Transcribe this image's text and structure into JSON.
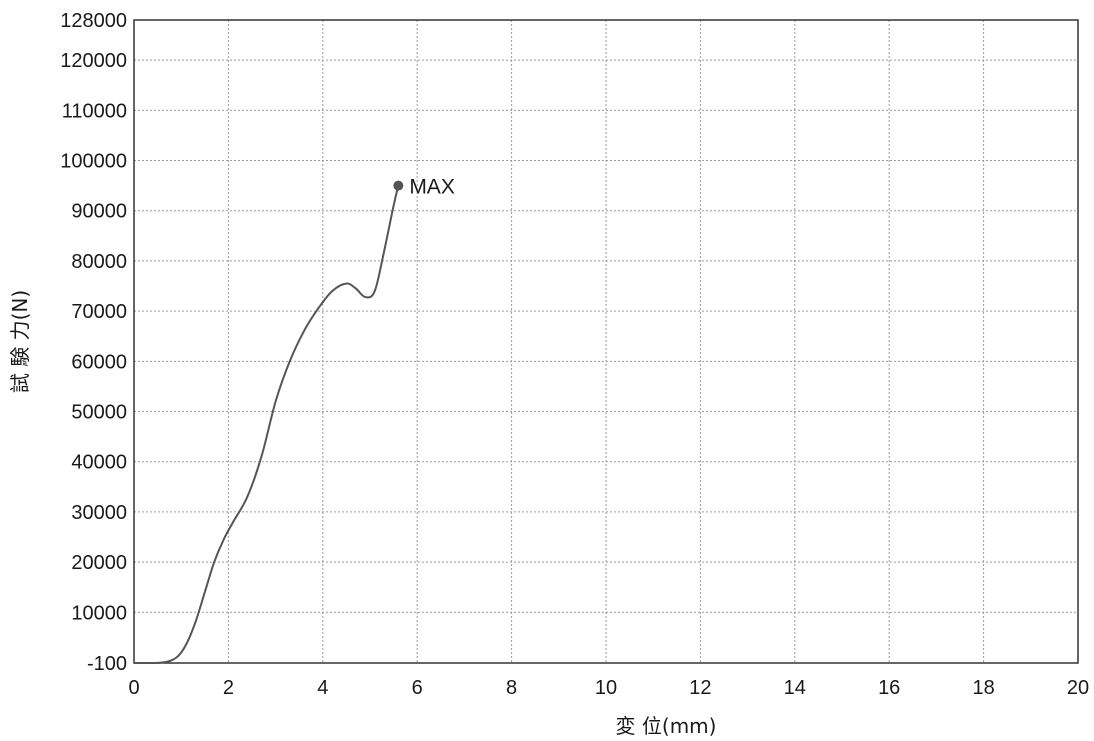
{
  "chart_data": {
    "type": "line",
    "title": "",
    "xlabel": "変 位(mm)",
    "ylabel": "試 験 力(N)",
    "xlim": [
      0,
      20
    ],
    "ylim": [
      -100,
      128000
    ],
    "x_ticks": [
      0,
      2,
      4,
      6,
      8,
      10,
      12,
      14,
      16,
      18,
      20
    ],
    "x_tick_labels": [
      "0",
      "2",
      "4",
      "6",
      "8",
      "10",
      "12",
      "14",
      "16",
      "18",
      "20"
    ],
    "y_ticks": [
      -100,
      10000,
      20000,
      30000,
      40000,
      50000,
      60000,
      70000,
      80000,
      90000,
      100000,
      110000,
      120000,
      128000
    ],
    "y_tick_labels": [
      "-100",
      "10000",
      "20000",
      "30000",
      "40000",
      "50000",
      "60000",
      "70000",
      "80000",
      "90000",
      "100000",
      "110000",
      "120000",
      "128000"
    ],
    "grid": true,
    "line_color": "#555555",
    "series": [
      {
        "x": [
          0,
          0.6,
          0.9,
          1.1,
          1.3,
          1.5,
          1.7,
          1.9,
          2.1,
          2.4,
          2.7,
          3.0,
          3.3,
          3.6,
          3.9,
          4.2,
          4.5,
          4.7,
          4.9,
          5.1,
          5.3,
          5.5,
          5.6
        ],
        "y": [
          -100,
          0,
          1000,
          3500,
          8000,
          14000,
          20000,
          24500,
          28000,
          33000,
          41000,
          52000,
          60000,
          66000,
          70500,
          74000,
          75500,
          74500,
          72800,
          74000,
          82000,
          91000,
          95000
        ]
      }
    ],
    "annotations": [
      {
        "text": "MAX",
        "x": 5.6,
        "y": 95000
      }
    ]
  }
}
